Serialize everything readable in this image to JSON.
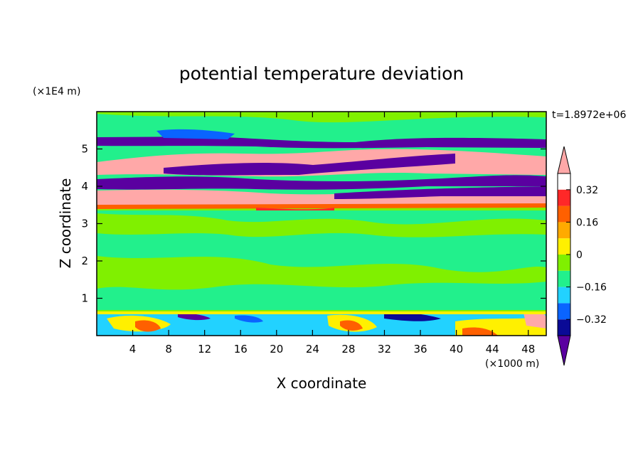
{
  "chart_data": {
    "type": "heatmap",
    "title": "potential temperature deviation",
    "xlabel": "X coordinate",
    "ylabel": "Z coordinate",
    "x_unit": "(×1000 m)",
    "y_unit": "(×1E4 m)",
    "time_label": "t=1.8972e+06",
    "x_ticks": [
      4,
      8,
      12,
      16,
      20,
      24,
      28,
      32,
      36,
      40,
      44,
      48
    ],
    "y_ticks": [
      1,
      2,
      3,
      4,
      5
    ],
    "xlim": [
      0,
      50
    ],
    "ylim": [
      0,
      6
    ],
    "colorbar": {
      "levels": [
        -0.4,
        -0.32,
        -0.24,
        -0.16,
        -0.08,
        0,
        0.08,
        0.16,
        0.24,
        0.32,
        0.4
      ],
      "tick_labels": [
        "0.32",
        "0.16",
        "0",
        "−0.16",
        "−0.32"
      ],
      "tick_values": [
        0.32,
        0.16,
        0,
        -0.16,
        -0.32
      ],
      "colors_low_to_high": [
        "#5a00a0",
        "#0a0a96",
        "#0a64ff",
        "#22d2ff",
        "#22f08c",
        "#80f000",
        "#fff000",
        "#ffaa00",
        "#ff6000",
        "#ff2828",
        "#ffa8a8"
      ],
      "extend": "both"
    },
    "layers": [
      {
        "z_range": [
          0.0,
          0.6
        ],
        "pattern": "mixed warm/cool eddies near surface"
      },
      {
        "z_range": [
          0.6,
          3.4
        ],
        "pattern": "near-zero, slightly positive"
      },
      {
        "z_range": [
          3.4,
          5.3
        ],
        "pattern": "alternating strong positive and negative bands"
      },
      {
        "z_range": [
          5.3,
          6.0
        ],
        "pattern": "near-zero"
      }
    ]
  }
}
